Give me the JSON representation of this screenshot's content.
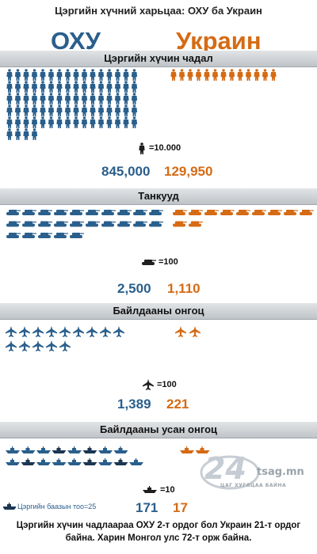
{
  "title": "Цэргийн хүчний харьцаа: ОХУ ба Украин",
  "countries": {
    "left": "ОХУ",
    "right": "Украин"
  },
  "colors": {
    "russia": "#2a5f8c",
    "ukraine": "#d56b15",
    "navy_dark": "#1c3652"
  },
  "sections": [
    {
      "heading": "Цэргийн хүчин чадал",
      "icon": "soldier-icon",
      "scale": "=10.000",
      "russia_value": "845,000",
      "ukraine_value": "129,950"
    },
    {
      "heading": "Танкууд",
      "icon": "tank-icon",
      "scale": "=100",
      "russia_value": "2,500",
      "ukraine_value": "1,110"
    },
    {
      "heading": "Байлдааны онгоц",
      "icon": "jet-icon",
      "scale": "=100",
      "russia_value": "1,389",
      "ukraine_value": "221"
    },
    {
      "heading": "Байлдааны усан онгоц",
      "icon": "ship-icon",
      "scale": "=10",
      "russia_value": "171",
      "ukraine_value": "17"
    }
  ],
  "base_legend": "Цэргийн баазын тоо=25",
  "watermark": {
    "number": "24",
    "site": "tsag.mn",
    "tagline": "ЦАГ ХУГАЦАА БАЙНА"
  },
  "footnote": "Цэргийн хүчин чадлаараа ОХУ 2-т ордог бол Украин 21-т ордог байна. Харин Монгол улс 72-т орж байна."
}
